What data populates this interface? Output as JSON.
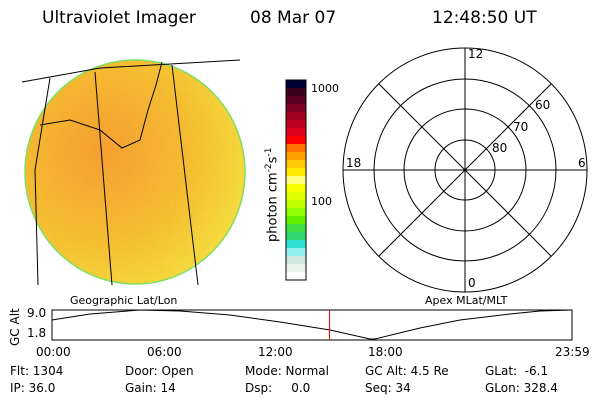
{
  "header": {
    "instrument": "Ultraviolet Imager",
    "date": "08 Mar 07",
    "time": "12:48:50 UT"
  },
  "colorbar": {
    "unit": "photon cm",
    "exp1": "-2",
    "s": "s",
    "exp2": "-1",
    "ticks": [
      "1000",
      "100"
    ],
    "colors": [
      "#000030",
      "#3a0020",
      "#5a0020",
      "#800020",
      "#a00020",
      "#c00020",
      "#e00020",
      "#ff0000",
      "#ff7000",
      "#ffa000",
      "#ffc800",
      "#ffe800",
      "#ffff80",
      "#f8ff00",
      "#e0ff00",
      "#c0ff00",
      "#90ff00",
      "#60f000",
      "#40e040",
      "#30d870",
      "#30e0d0",
      "#90f0f0",
      "#d0e8e0",
      "#e8f4ec",
      "#ffffff"
    ]
  },
  "polar": {
    "mlt_labels": {
      "top": "12",
      "bottom": "0",
      "left": "18",
      "right": "6"
    },
    "lat_labels": [
      "60",
      "70",
      "80"
    ]
  },
  "plot_labels": {
    "left": "Geographic Lat/Lon",
    "right": "Apex MLat/MLT"
  },
  "altitude": {
    "ylabel": "GC Alt",
    "yticks": [
      "9.0",
      "1.8"
    ],
    "xticks": [
      "00:00",
      "06:00",
      "12:00",
      "18:00",
      "23:59"
    ],
    "current_hour": 12.81
  },
  "status": {
    "flt": "Flt: 1304",
    "door": "Door: Open",
    "mode": "Mode: Normal",
    "gcalt": "GC Alt: 4.5 Re",
    "glat": "GLat:  -6.1",
    "ip": "IP: 36.0",
    "gain": "Gain: 14",
    "dsp": "Dsp:     0.0",
    "seq": "Seq: 34",
    "glon": "GLon: 328.4"
  },
  "colors": {
    "marker": "#ff0000",
    "accent": "#f8a020"
  }
}
